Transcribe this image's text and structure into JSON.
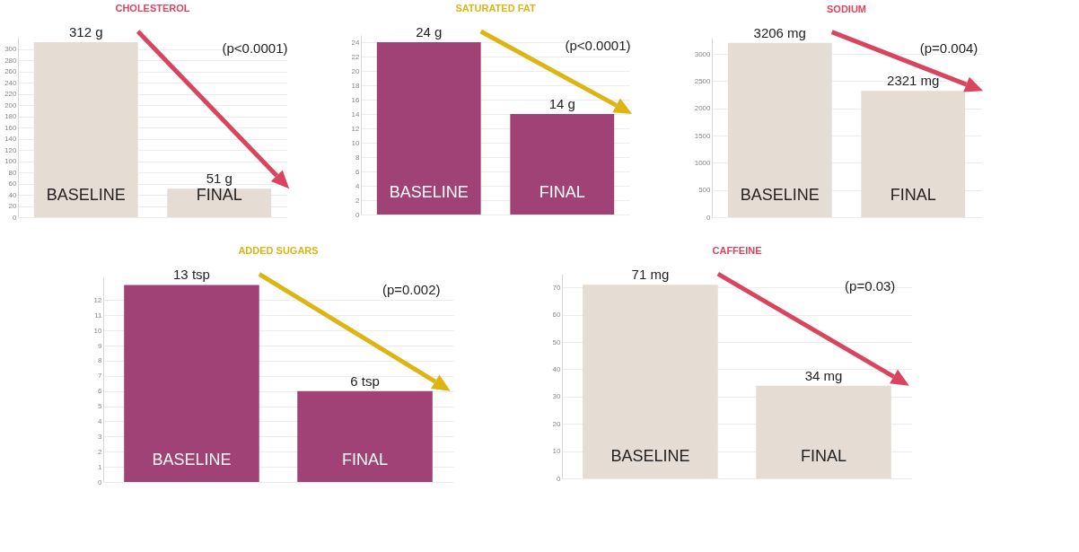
{
  "chart_data": [
    {
      "type": "bar",
      "title": "CHOLESTEROL",
      "categories": [
        "BASELINE",
        "FINAL"
      ],
      "values": [
        312,
        51
      ],
      "color": "#e5ddd3",
      "value_labels": [
        "312 g",
        "51 g"
      ],
      "annotations": [
        "(p<0.0001)"
      ],
      "ylim": [
        0,
        320
      ],
      "yticks": [
        0,
        20,
        40,
        60,
        80,
        100,
        120,
        140,
        160,
        180,
        200,
        220,
        240,
        260,
        280,
        300
      ],
      "grid": "y"
    },
    {
      "type": "bar",
      "title": "SATURATED FAT",
      "categories": [
        "BASELINE",
        "FINAL"
      ],
      "values": [
        24,
        14
      ],
      "color": "#a14277",
      "value_labels": [
        "24 g",
        "14 g"
      ],
      "annotations": [
        "(p<0.0001)"
      ],
      "ylim": [
        0,
        25
      ],
      "yticks": [
        0,
        2,
        4,
        6,
        8,
        10,
        12,
        14,
        16,
        18,
        20,
        22,
        24
      ],
      "grid": "y"
    },
    {
      "type": "bar",
      "title": "SODIUM",
      "categories": [
        "BASELINE",
        "FINAL"
      ],
      "values": [
        3206,
        2321
      ],
      "color": "#e5ddd3",
      "value_labels": [
        "3206 mg",
        "2321 mg"
      ],
      "annotations": [
        "(p=0.004)"
      ],
      "ylim": [
        0,
        3300
      ],
      "yticks": [
        0,
        500,
        1000,
        1500,
        2000,
        2500,
        3000
      ],
      "grid": "y"
    },
    {
      "type": "bar",
      "title": "ADDED SUGARS",
      "categories": [
        "BASELINE",
        "FINAL"
      ],
      "values": [
        13,
        6
      ],
      "color": "#a14277",
      "value_labels": [
        "13 tsp",
        "6 tsp"
      ],
      "annotations": [
        "(p=0.002)"
      ],
      "ylim": [
        0,
        13.5
      ],
      "yticks": [
        0,
        1,
        2,
        3,
        4,
        5,
        6,
        7,
        8,
        9,
        10,
        11,
        12
      ],
      "grid": "y"
    },
    {
      "type": "bar",
      "title": "CAFFEINE",
      "categories": [
        "BASELINE",
        "FINAL"
      ],
      "values": [
        71,
        34
      ],
      "color": "#e5ddd3",
      "value_labels": [
        "71 mg",
        "34 mg"
      ],
      "annotations": [
        "(p=0.03)"
      ],
      "ylim": [
        0,
        75
      ],
      "yticks": [
        0,
        10,
        20,
        30,
        40,
        50,
        60,
        70
      ],
      "grid": "y"
    }
  ]
}
